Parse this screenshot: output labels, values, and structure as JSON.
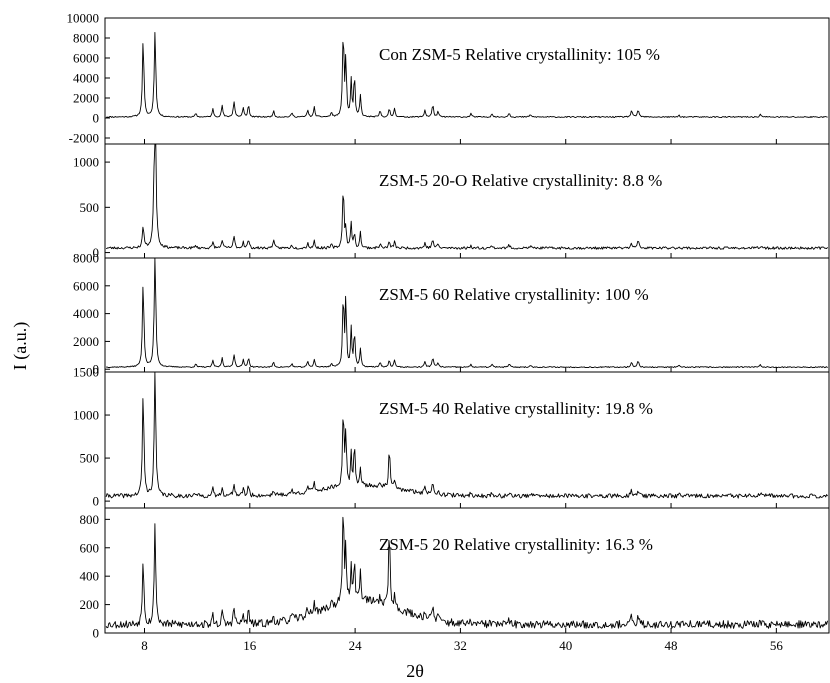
{
  "chart_data": {
    "type": "line",
    "xlabel": "2θ",
    "ylabel": "I (a.u.)",
    "xlim": [
      5,
      60
    ],
    "x_ticks": [
      8,
      16,
      24,
      32,
      40,
      48,
      56
    ],
    "peaks": [
      [
        7.9,
        0.72,
        0.13
      ],
      [
        8.8,
        0.7,
        0.14
      ],
      [
        8.8,
        0.0,
        0.14
      ],
      [
        11.9,
        0.04,
        0.12
      ],
      [
        13.2,
        0.09,
        0.12
      ],
      [
        13.9,
        0.13,
        0.12
      ],
      [
        14.8,
        0.17,
        0.14
      ],
      [
        15.5,
        0.1,
        0.12
      ],
      [
        15.9,
        0.14,
        0.12
      ],
      [
        17.8,
        0.07,
        0.12
      ],
      [
        19.2,
        0.05,
        0.12
      ],
      [
        20.4,
        0.08,
        0.12
      ],
      [
        20.9,
        0.11,
        0.12
      ],
      [
        22.2,
        0.05,
        0.12
      ],
      [
        23.1,
        1.0,
        0.12
      ],
      [
        23.3,
        0.65,
        0.1
      ],
      [
        23.7,
        0.4,
        0.11
      ],
      [
        23.95,
        0.52,
        0.11
      ],
      [
        24.4,
        0.24,
        0.12
      ],
      [
        25.9,
        0.07,
        0.12
      ],
      [
        26.6,
        0.09,
        0.12
      ],
      [
        27.0,
        0.1,
        0.12
      ],
      [
        29.3,
        0.08,
        0.12
      ],
      [
        29.9,
        0.13,
        0.14
      ],
      [
        30.3,
        0.06,
        0.12
      ],
      [
        32.8,
        0.04,
        0.12
      ],
      [
        34.4,
        0.04,
        0.12
      ],
      [
        35.7,
        0.05,
        0.12
      ],
      [
        37.3,
        0.03,
        0.12
      ],
      [
        45.0,
        0.07,
        0.14
      ],
      [
        45.5,
        0.08,
        0.14
      ],
      [
        48.6,
        0.02,
        0.12
      ],
      [
        54.8,
        0.03,
        0.14
      ]
    ],
    "panels": [
      {
        "label": "Con ZSM-5   Relative crystallinity: 105 %",
        "ylim": [
          -2600,
          10000
        ],
        "yticks": [
          -2000,
          0,
          2000,
          4000,
          6000,
          8000,
          10000
        ],
        "base": 100,
        "scale": 9000,
        "noise": 60,
        "amorph": 0,
        "seed": 11,
        "overrides": [
          [
            8.8,
            0.48
          ],
          [
            7.9,
            0.89
          ],
          [
            23.3,
            0.67
          ],
          [
            23.95,
            0.48
          ]
        ]
      },
      {
        "label": "ZSM-5 20-O  Relative crystallinity: 8.8 %",
        "ylim": [
          -60,
          1200
        ],
        "yticks": [
          0,
          500,
          1000
        ],
        "base": 50,
        "scale": 720,
        "noise": 14,
        "amorph": 0,
        "seed": 23,
        "overrides": [
          [
            7.9,
            0.35
          ],
          [
            8.8,
            1.45
          ],
          [
            23.3,
            0.3
          ],
          [
            23.95,
            0.22
          ],
          [
            17.8,
            0.14
          ],
          [
            26.6,
            0.1
          ],
          [
            45.5,
            0.11
          ]
        ]
      },
      {
        "label": "ZSM-5 60   Relative crystallinity: 100 %",
        "ylim": [
          -200,
          8000
        ],
        "yticks": [
          0,
          2000,
          4000,
          6000,
          8000
        ],
        "base": 150,
        "scale": 5300,
        "noise": 40,
        "amorph": 0,
        "seed": 37,
        "overrides": [
          [
            7.9,
            1.18
          ],
          [
            8.8,
            0.8
          ],
          [
            23.3,
            0.98
          ],
          [
            23.7,
            0.52
          ],
          [
            23.95,
            0.5
          ]
        ]
      },
      {
        "label": "ZSM-5 40   Relative crystallinity: 19.8 %",
        "ylim": [
          -80,
          1500
        ],
        "yticks": [
          0,
          500,
          1000,
          1500
        ],
        "base": 60,
        "scale": 900,
        "noise": 25,
        "amorph": 120,
        "seed": 41,
        "overrides": [
          [
            7.9,
            1.38
          ],
          [
            8.8,
            0.82
          ],
          [
            26.6,
            0.52
          ],
          [
            23.95,
            0.55
          ],
          [
            23.3,
            0.75
          ],
          [
            29.9,
            0.16
          ]
        ]
      },
      {
        "label": "ZSM-5 20   Relative crystallinity: 16.3 %",
        "ylim": [
          0,
          880
        ],
        "yticks": [
          0,
          200,
          400,
          600,
          800
        ],
        "base": 60,
        "scale": 700,
        "noise": 28,
        "amorph": 170,
        "seed": 53,
        "overrides": [
          [
            7.9,
            0.7
          ],
          [
            8.8,
            0.5
          ],
          [
            26.6,
            0.82
          ],
          [
            23.3,
            0.55
          ],
          [
            23.7,
            0.38
          ],
          [
            23.95,
            0.42
          ],
          [
            24.4,
            0.3
          ]
        ]
      }
    ]
  }
}
